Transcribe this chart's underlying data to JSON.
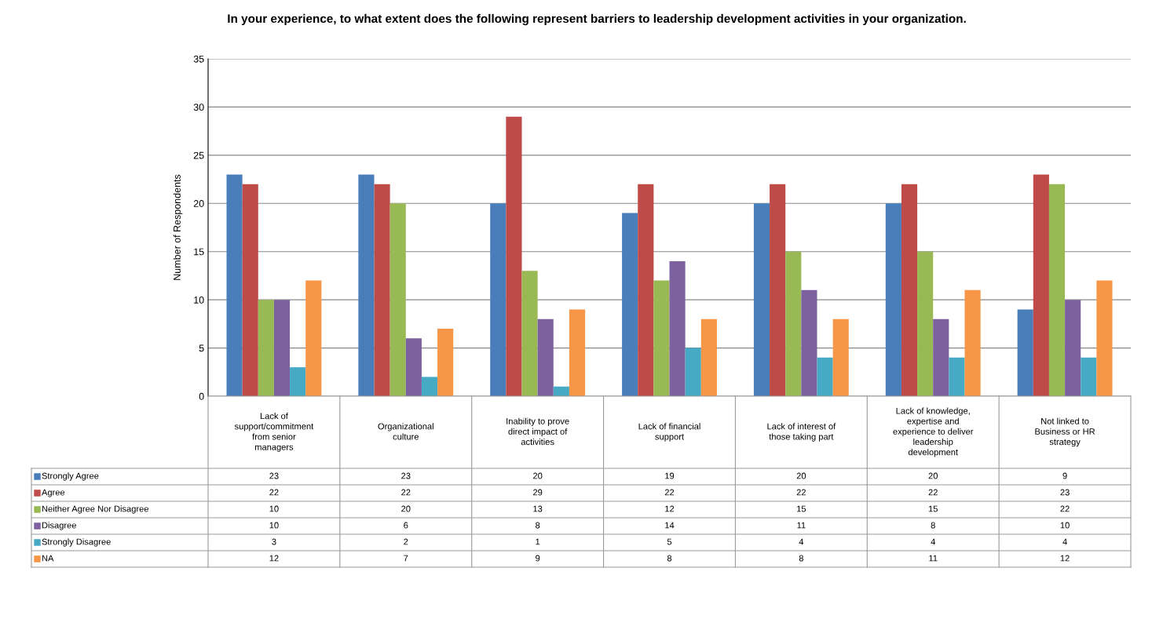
{
  "chart_data": {
    "type": "bar",
    "title": "In your experience, to what extent does the following represent barriers to leadership development activities in your organization.",
    "ylabel": "Number of Respondents",
    "categories": [
      "Lack of\nsupport/commitment\nfrom senior\nmanagers",
      "Organizational\nculture",
      "Inability to prove\ndirect impact of\nactivities",
      "Lack of financial\nsupport",
      "Lack of interest of\nthose taking part",
      "Lack of knowledge,\nexpertise and\nexperience to deliver\nleadership\ndevelopment",
      "Not linked to\nBusiness or HR\nstrategy"
    ],
    "series": [
      {
        "name": "Strongly Agree",
        "color": "#4a7ebb",
        "values": [
          23,
          23,
          20,
          19,
          20,
          20,
          9
        ]
      },
      {
        "name": "Agree",
        "color": "#be4b48",
        "values": [
          22,
          22,
          29,
          22,
          22,
          22,
          23
        ]
      },
      {
        "name": "Neither Agree Nor Disagree",
        "color": "#98b954",
        "values": [
          10,
          20,
          13,
          12,
          15,
          15,
          22
        ]
      },
      {
        "name": "Disagree",
        "color": "#7d60a0",
        "values": [
          10,
          6,
          8,
          14,
          11,
          8,
          10
        ]
      },
      {
        "name": "Strongly Disagree",
        "color": "#46aac5",
        "values": [
          3,
          2,
          1,
          5,
          4,
          4,
          4
        ]
      },
      {
        "name": "NA",
        "color": "#f79646",
        "values": [
          12,
          7,
          9,
          8,
          8,
          11,
          12
        ]
      }
    ],
    "ylim": [
      0,
      35
    ],
    "yticks": [
      0,
      5,
      10,
      15,
      20,
      25,
      30,
      35
    ],
    "grid": "y",
    "legend": "bottom",
    "data_labels": true
  }
}
